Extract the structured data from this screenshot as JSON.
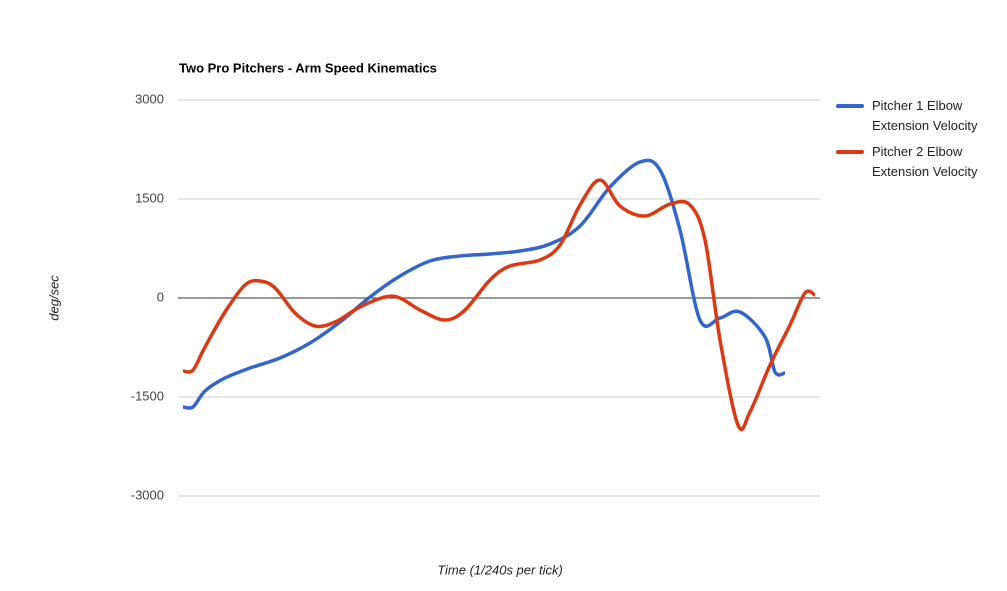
{
  "chart_data": {
    "type": "line",
    "title": "Two Pro Pitchers - Arm Speed Kinematics",
    "x_label": "Time (1/240s per tick)",
    "y_label": "deg/sec",
    "xlim": [
      -0.5,
      63.7
    ],
    "ylim": [
      -3000,
      3000
    ],
    "yticks": [
      -3000,
      -1500,
      0,
      1500,
      3000
    ],
    "grid": true,
    "legend": "right",
    "series": [
      {
        "name": "Pitcher 1 Elbow Extension Velocity",
        "color": "#3366cc",
        "x": [
          0,
          1,
          2.2,
          4.2,
          6.7,
          9.7,
          12.7,
          15.7,
          18.7,
          21.7,
          24.7,
          27.7,
          30.7,
          33.7,
          36.7,
          39.7,
          42.7,
          45.7,
          47.7,
          49.7,
          51.7,
          53.7,
          55.7,
          58.2,
          59.2,
          60.2
        ],
        "values": [
          -1652,
          -1650,
          -1409,
          -1212,
          -1061,
          -909,
          -682,
          -364,
          15,
          333,
          561,
          636,
          667,
          712,
          818,
          1091,
          1682,
          2061,
          1939,
          1030,
          -333,
          -303,
          -212,
          -591,
          -1121,
          -1136
        ]
      },
      {
        "name": "Pitcher 2 Elbow Extension Velocity",
        "color": "#dc3912",
        "x": [
          0,
          1,
          2.2,
          4.2,
          6.2,
          7.7,
          9.2,
          11.2,
          13.2,
          15.2,
          17.7,
          20.2,
          21.7,
          23.7,
          26.2,
          28.2,
          30.7,
          32.7,
          35.7,
          37.7,
          39.7,
          41.7,
          43.7,
          46.2,
          48.7,
          50.7,
          52.2,
          53.7,
          55.5,
          56.7,
          58.7,
          60.7,
          62.2,
          63.2
        ],
        "values": [
          -1106,
          -1091,
          -742,
          -212,
          197,
          258,
          152,
          -227,
          -424,
          -364,
          -136,
          15,
          0,
          -182,
          -333,
          -182,
          273,
          485,
          576,
          803,
          1409,
          1788,
          1394,
          1242,
          1424,
          1409,
          879,
          -636,
          -1924,
          -1727,
          -1015,
          -409,
          76,
          45
        ]
      }
    ]
  }
}
